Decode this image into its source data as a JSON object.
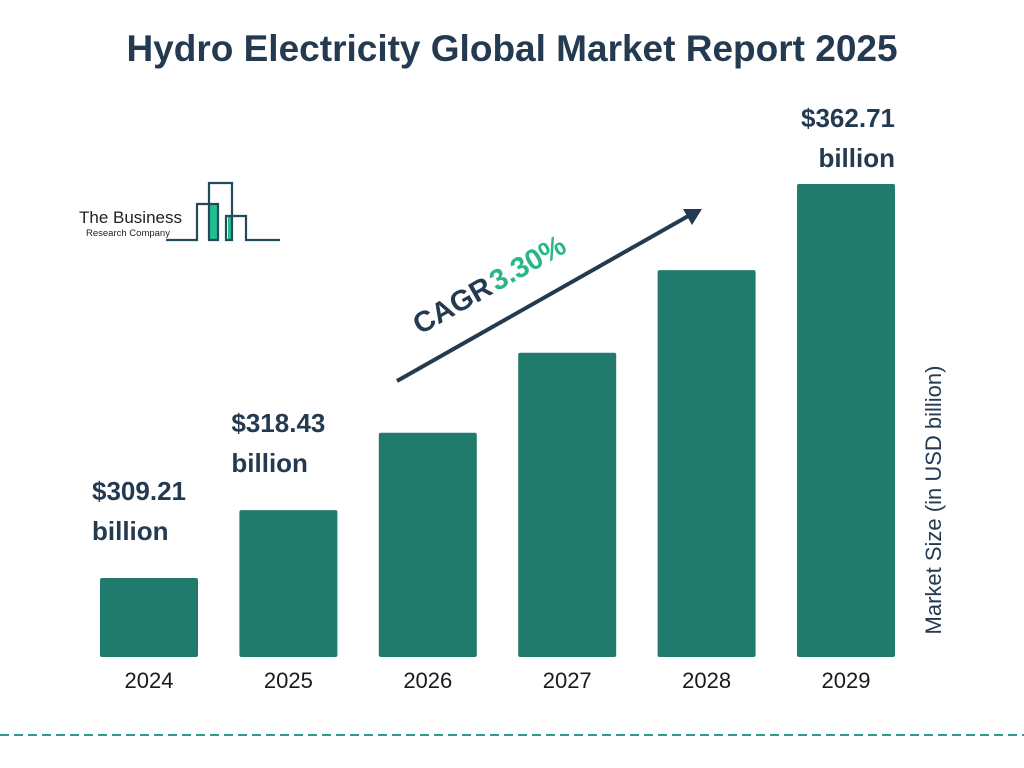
{
  "title": "Hydro Electricity Global Market Report 2025",
  "logo": {
    "line1": "The Business",
    "line2": "Research Company"
  },
  "colors": {
    "bar": "#217b6c",
    "title": "#233a50",
    "cagr_value": "#2bb58a",
    "logo_accent": "#22c08e",
    "dashed_line": "#2a9d8f"
  },
  "cagr": {
    "label": "CAGR",
    "value": "3.30%"
  },
  "chart_data": {
    "type": "bar",
    "title": "Hydro Electricity Global Market Report 2025",
    "categories": [
      "2024",
      "2025",
      "2026",
      "2027",
      "2028",
      "2029"
    ],
    "values": [
      309.21,
      318.43,
      328.94,
      339.79,
      351.01,
      362.71
    ],
    "data_labels": [
      {
        "category": "2024",
        "value": "$309.21",
        "unit": "billion"
      },
      {
        "category": "2025",
        "value": "$318.43",
        "unit": "billion"
      },
      {
        "category": "2029",
        "value": "$362.71",
        "unit": "billion"
      }
    ],
    "ylabel": "Market Size (in USD billion)",
    "xlabel": "",
    "grid": false,
    "legend": "none"
  }
}
